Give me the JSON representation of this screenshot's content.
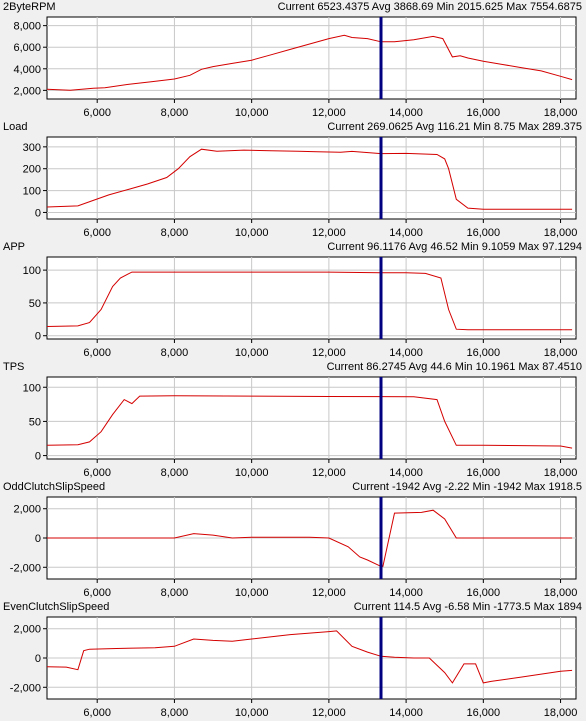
{
  "chart_data": [
    {
      "type": "line",
      "title": "2ByteRPM",
      "stats": "Current 6523.4375 Avg 3868.69 Min 2015.625 Max 7554.6875",
      "xlim": [
        4700,
        18400
      ],
      "xticks": [
        6000,
        8000,
        10000,
        12000,
        14000,
        16000,
        18000
      ],
      "xtick_labels": [
        "6,000",
        "8,000",
        "10,000",
        "12,000",
        "14,000",
        "16,000",
        "18,000"
      ],
      "ylim": [
        1200,
        8800
      ],
      "yticks": [
        2000,
        4000,
        6000,
        8000
      ],
      "ytick_labels": [
        "2,000",
        "4,000",
        "6,000",
        "8,000"
      ],
      "cursor_x": 13350,
      "grid": true,
      "line_color": "#d40000",
      "x": [
        4700,
        5300,
        5900,
        6200,
        6800,
        7400,
        8000,
        8400,
        8700,
        9000,
        9500,
        10000,
        10500,
        11000,
        11500,
        12000,
        12400,
        12600,
        13000,
        13350,
        13700,
        14200,
        14700,
        14950,
        15200,
        15400,
        15600,
        16000,
        16500,
        17000,
        17500,
        18000,
        18300
      ],
      "y": [
        2100,
        2020,
        2200,
        2250,
        2550,
        2800,
        3050,
        3400,
        3950,
        4200,
        4500,
        4800,
        5300,
        5800,
        6300,
        6800,
        7100,
        6900,
        6800,
        6500,
        6500,
        6700,
        7000,
        6800,
        5100,
        5200,
        5000,
        4700,
        4400,
        4100,
        3800,
        3300,
        3000
      ]
    },
    {
      "type": "line",
      "title": "Load",
      "stats": "Current 269.0625 Avg 116.21 Min 8.75 Max 289.375",
      "xlim": [
        4700,
        18400
      ],
      "xticks": [
        6000,
        8000,
        10000,
        12000,
        14000,
        16000,
        18000
      ],
      "xtick_labels": [
        "6,000",
        "8,000",
        "10,000",
        "12,000",
        "14,000",
        "16,000",
        "18,000"
      ],
      "ylim": [
        -30,
        345
      ],
      "yticks": [
        0,
        100,
        200,
        300
      ],
      "ytick_labels": [
        "0",
        "100",
        "200",
        "300"
      ],
      "cursor_x": 13350,
      "grid": true,
      "line_color": "#d40000",
      "x": [
        4700,
        5500,
        5900,
        6300,
        6800,
        7300,
        7800,
        8100,
        8400,
        8700,
        9100,
        9800,
        10500,
        11200,
        11700,
        12300,
        12600,
        13350,
        14000,
        14800,
        15000,
        15100,
        15300,
        15600,
        16000,
        18300
      ],
      "y": [
        25,
        30,
        55,
        80,
        105,
        130,
        160,
        200,
        255,
        289,
        280,
        285,
        282,
        280,
        278,
        275,
        279,
        269,
        270,
        265,
        245,
        200,
        60,
        20,
        15,
        15
      ]
    },
    {
      "type": "line",
      "title": "APP",
      "stats": "Current 96.1176 Avg 46.52 Min 9.1059 Max 97.1294",
      "xlim": [
        4700,
        18400
      ],
      "xticks": [
        6000,
        8000,
        10000,
        12000,
        14000,
        16000,
        18000
      ],
      "xtick_labels": [
        "6,000",
        "8,000",
        "10,000",
        "12,000",
        "14,000",
        "16,000",
        "18,000"
      ],
      "ylim": [
        -5,
        120
      ],
      "yticks": [
        0,
        50,
        100
      ],
      "ytick_labels": [
        "0",
        "50",
        "100"
      ],
      "cursor_x": 13350,
      "grid": true,
      "line_color": "#d40000",
      "x": [
        4700,
        5500,
        5800,
        6100,
        6400,
        6600,
        6900,
        8000,
        10000,
        12000,
        13350,
        14000,
        14500,
        14900,
        15100,
        15300,
        15600,
        16000,
        18300
      ],
      "y": [
        14,
        15,
        20,
        40,
        75,
        88,
        97,
        97,
        97,
        97,
        96.1,
        96,
        95,
        88,
        40,
        10,
        9.1,
        9.1,
        9.1
      ]
    },
    {
      "type": "line",
      "title": "TPS",
      "stats": "Current 86.2745 Avg 44.6 Min 10.1961 Max 87.4510",
      "xlim": [
        4700,
        18400
      ],
      "xticks": [
        6000,
        8000,
        10000,
        12000,
        14000,
        16000,
        18000
      ],
      "xtick_labels": [
        "6,000",
        "8,000",
        "10,000",
        "12,000",
        "14,000",
        "16,000",
        "18,000"
      ],
      "ylim": [
        -5,
        115
      ],
      "yticks": [
        0,
        50,
        100
      ],
      "ytick_labels": [
        "0",
        "50",
        "100"
      ],
      "cursor_x": 13350,
      "grid": true,
      "line_color": "#d40000",
      "x": [
        4700,
        5500,
        5800,
        6100,
        6400,
        6700,
        6900,
        7100,
        8000,
        10000,
        12000,
        13350,
        14200,
        14800,
        15000,
        15300,
        16000,
        18000,
        18300
      ],
      "y": [
        15,
        16,
        20,
        35,
        60,
        82,
        76,
        87,
        87.5,
        87,
        86.5,
        86.3,
        86,
        82,
        50,
        15,
        15,
        14,
        11
      ]
    },
    {
      "type": "line",
      "title": "OddClutchSlipSpeed",
      "stats": "Current -1942 Avg -2.22 Min -1942 Max 1918.5",
      "xlim": [
        4700,
        18400
      ],
      "xticks": [
        6000,
        8000,
        10000,
        12000,
        14000,
        16000,
        18000
      ],
      "xtick_labels": [
        "6,000",
        "8,000",
        "10,000",
        "12,000",
        "14,000",
        "16,000",
        "18,000"
      ],
      "ylim": [
        -2800,
        2800
      ],
      "yticks": [
        -2000,
        0,
        2000
      ],
      "ytick_labels": [
        "-2,000",
        "0",
        "2,000"
      ],
      "cursor_x": 13350,
      "grid": true,
      "line_color": "#d40000",
      "x": [
        4700,
        6000,
        8000,
        8500,
        9000,
        9500,
        10000,
        11500,
        12000,
        12500,
        12800,
        13000,
        13350,
        13400,
        13700,
        14400,
        14700,
        15000,
        15300,
        15600,
        16500,
        18300
      ],
      "y": [
        0,
        0,
        0,
        300,
        200,
        0,
        50,
        50,
        0,
        -600,
        -1300,
        -1500,
        -1942,
        -1942,
        1700,
        1750,
        1900,
        1300,
        0,
        0,
        0,
        0
      ]
    },
    {
      "type": "line",
      "title": "EvenClutchSlipSpeed",
      "stats": "Current 114.5 Avg -6.58 Min -1773.5 Max 1894",
      "xlim": [
        4700,
        18400
      ],
      "xticks": [
        6000,
        8000,
        10000,
        12000,
        14000,
        16000,
        18000
      ],
      "xtick_labels": [
        "6,000",
        "8,000",
        "10,000",
        "12,000",
        "14,000",
        "16,000",
        "18,000"
      ],
      "ylim": [
        -2800,
        2800
      ],
      "yticks": [
        -2000,
        0,
        2000
      ],
      "ytick_labels": [
        "-2,000",
        "0",
        "2,000"
      ],
      "cursor_x": 13350,
      "grid": true,
      "line_color": "#d40000",
      "x": [
        4700,
        5200,
        5500,
        5650,
        5800,
        6500,
        7500,
        8000,
        8500,
        9000,
        9500,
        10000,
        11000,
        11500,
        12000,
        12200,
        12600,
        13000,
        13350,
        13700,
        14200,
        14600,
        15000,
        15200,
        15500,
        15800,
        16000,
        16200,
        17000,
        18000,
        18300
      ],
      "y": [
        -600,
        -620,
        -800,
        500,
        600,
        650,
        700,
        800,
        1300,
        1200,
        1150,
        1300,
        1600,
        1700,
        1800,
        1850,
        800,
        400,
        114,
        50,
        0,
        0,
        -1000,
        -1700,
        -400,
        -400,
        -1700,
        -1600,
        -1300,
        -900,
        -850
      ]
    }
  ]
}
